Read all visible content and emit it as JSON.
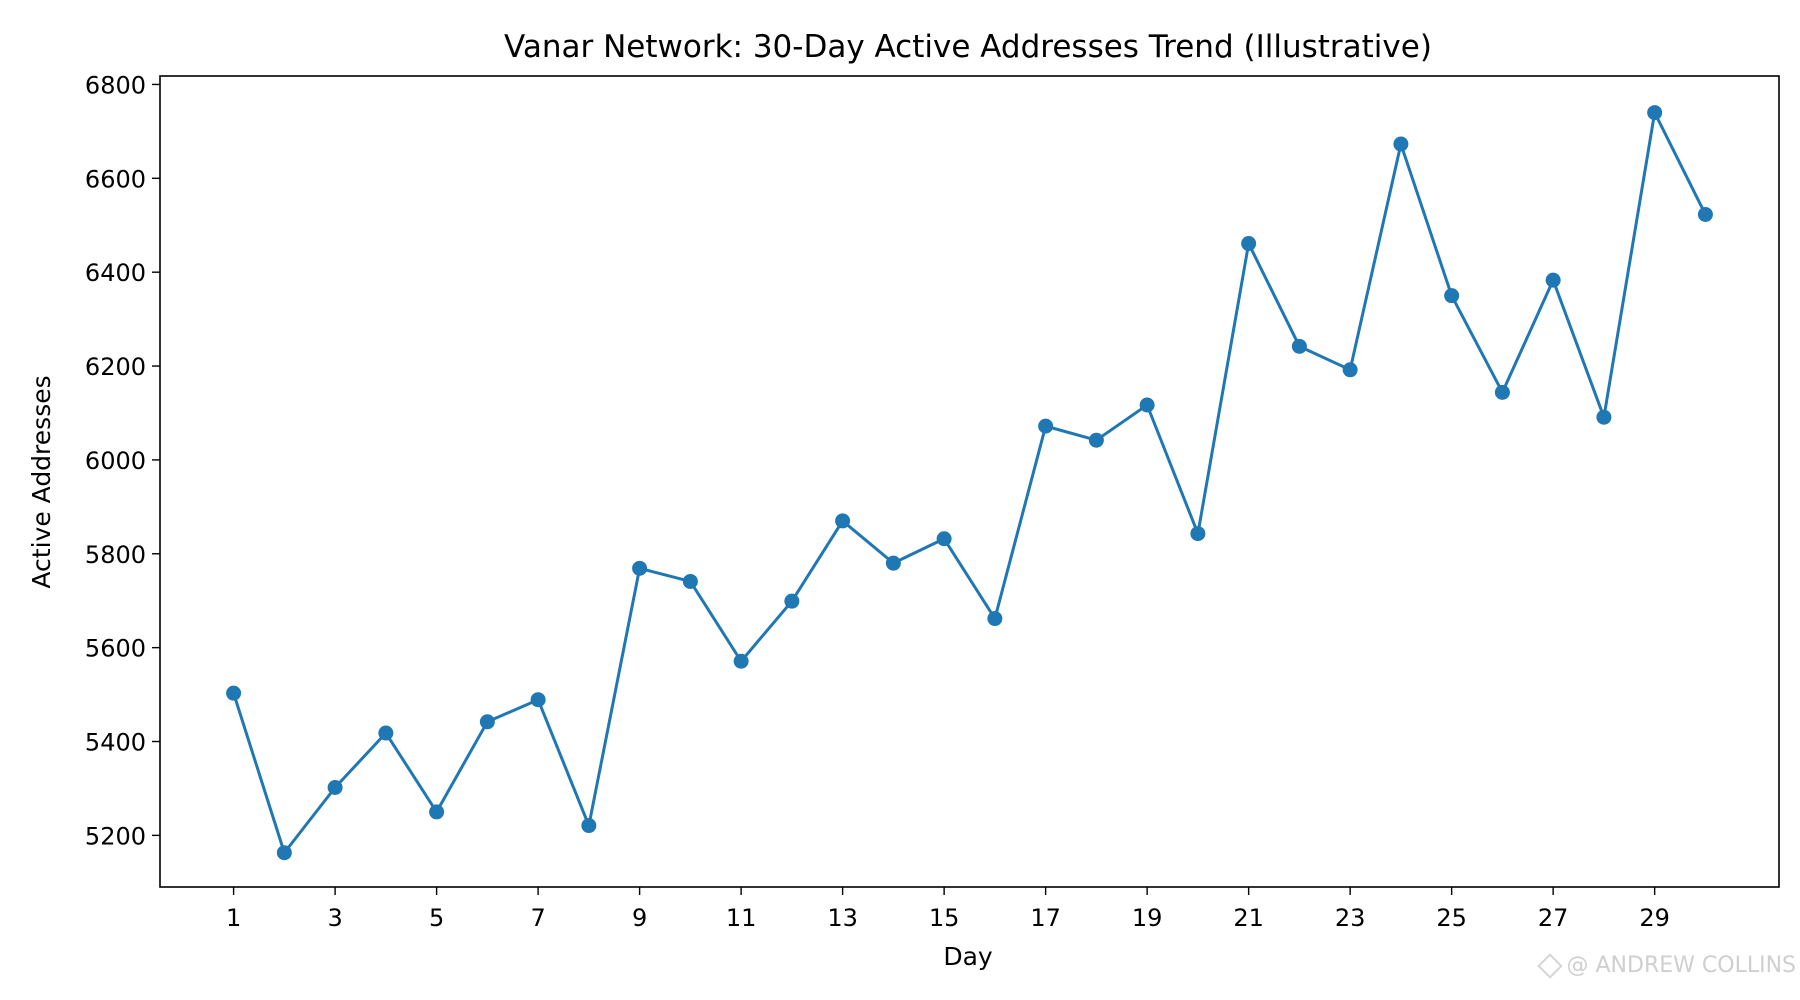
{
  "chart_data": {
    "type": "line",
    "title": "Vanar Network: 30-Day Active Addresses Trend (Illustrative)",
    "xlabel": "Day",
    "ylabel": "Active Addresses",
    "x": [
      1,
      2,
      3,
      4,
      5,
      6,
      7,
      8,
      9,
      10,
      11,
      12,
      13,
      14,
      15,
      16,
      17,
      18,
      19,
      20,
      21,
      22,
      23,
      24,
      25,
      26,
      27,
      28,
      29,
      30
    ],
    "series": [
      {
        "values": [
          5503,
          5163,
          5302,
          5418,
          5250,
          5442,
          5489,
          5221,
          5769,
          5741,
          5571,
          5699,
          5870,
          5780,
          5832,
          5662,
          6072,
          6042,
          6117,
          5843,
          6461,
          6242,
          6192,
          6673,
          6350,
          6144,
          6383,
          6091,
          6740,
          6523
        ],
        "color": "#1f77b4"
      }
    ],
    "xlim": [
      -0.45,
      31.45
    ],
    "ylim": [
      5090,
      6818
    ],
    "xticks": [
      1,
      3,
      5,
      7,
      9,
      11,
      13,
      15,
      17,
      19,
      21,
      23,
      25,
      27,
      29
    ],
    "yticks": [
      5200,
      5400,
      5600,
      5800,
      6000,
      6200,
      6400,
      6600,
      6800
    ],
    "grid": false,
    "legend": false,
    "marker": "circle"
  },
  "watermark": {
    "text": "@ ANDREW COLLINS",
    "icon": "binance-diamond-icon"
  }
}
